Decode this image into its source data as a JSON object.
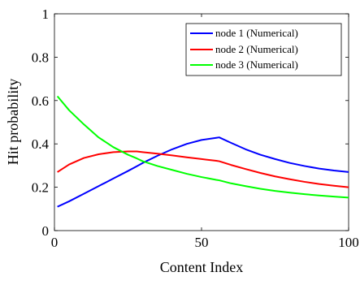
{
  "chart_data": {
    "type": "line",
    "title": "",
    "xlabel": "Content Index",
    "ylabel": "Hit probability",
    "xlim": [
      0,
      100
    ],
    "ylim": [
      0,
      1
    ],
    "xticks": [
      0,
      50,
      100
    ],
    "xtick_labels": [
      "0",
      "50",
      "100"
    ],
    "yticks": [
      0,
      0.2,
      0.4,
      0.6,
      0.8,
      1
    ],
    "ytick_labels": [
      "0",
      "0.2",
      "0.4",
      "0.6",
      "0.8",
      "1"
    ],
    "grid": false,
    "legend": {
      "position": "top-right"
    },
    "x": [
      1,
      5,
      10,
      15,
      20,
      25,
      28,
      30,
      35,
      40,
      45,
      50,
      55,
      56,
      60,
      65,
      70,
      75,
      80,
      85,
      90,
      95,
      100
    ],
    "series": [
      {
        "name": "node 1 (Numerical)",
        "color": "#0000ff",
        "values": [
          0.11,
          0.135,
          0.17,
          0.205,
          0.24,
          0.275,
          0.297,
          0.312,
          0.345,
          0.375,
          0.4,
          0.418,
          0.428,
          0.43,
          0.405,
          0.375,
          0.35,
          0.33,
          0.312,
          0.298,
          0.286,
          0.277,
          0.27
        ]
      },
      {
        "name": "node 2 (Numerical)",
        "color": "#ff0000",
        "values": [
          0.27,
          0.305,
          0.335,
          0.352,
          0.362,
          0.365,
          0.365,
          0.362,
          0.355,
          0.347,
          0.338,
          0.33,
          0.322,
          0.32,
          0.303,
          0.284,
          0.266,
          0.25,
          0.237,
          0.225,
          0.215,
          0.207,
          0.2
        ]
      },
      {
        "name": "node 3 (Numerical)",
        "color": "#00ff00",
        "values": [
          0.62,
          0.555,
          0.49,
          0.43,
          0.385,
          0.35,
          0.333,
          0.32,
          0.298,
          0.28,
          0.262,
          0.247,
          0.234,
          0.232,
          0.218,
          0.205,
          0.193,
          0.183,
          0.175,
          0.168,
          0.162,
          0.157,
          0.152
        ]
      }
    ]
  }
}
